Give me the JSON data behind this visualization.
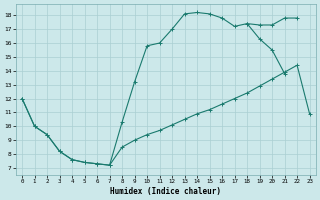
{
  "xlabel": "Humidex (Indice chaleur)",
  "bg_color": "#cce8ea",
  "grid_color": "#aacfd2",
  "line_color": "#1a7a6e",
  "xlim": [
    -0.5,
    23.5
  ],
  "ylim": [
    6.5,
    18.8
  ],
  "xticks": [
    0,
    1,
    2,
    3,
    4,
    5,
    6,
    7,
    8,
    9,
    10,
    11,
    12,
    13,
    14,
    15,
    16,
    17,
    18,
    19,
    20,
    21,
    22,
    23
  ],
  "yticks": [
    7,
    8,
    9,
    10,
    11,
    12,
    13,
    14,
    15,
    16,
    17,
    18
  ],
  "curve1_x": [
    0,
    1,
    2,
    3,
    4,
    5,
    6,
    7,
    8,
    9,
    10,
    11,
    12,
    13,
    14,
    15,
    16,
    17,
    18,
    19,
    20,
    21,
    22,
    23
  ],
  "curve1_y": [
    12,
    10,
    9.4,
    8.2,
    7.6,
    7.4,
    7.3,
    7.2,
    8.5,
    9.0,
    9.4,
    9.7,
    10.1,
    10.5,
    10.9,
    11.2,
    11.6,
    12.0,
    12.4,
    12.9,
    13.4,
    13.9,
    14.4,
    10.9
  ],
  "curve2_x": [
    0,
    1,
    2,
    3,
    4,
    5,
    6,
    7,
    8,
    9,
    10,
    11,
    12,
    13,
    14,
    15,
    16,
    17,
    18,
    19,
    20,
    21
  ],
  "curve2_y": [
    12,
    10,
    9.4,
    8.2,
    7.6,
    7.4,
    7.3,
    7.2,
    10.3,
    13.2,
    15.8,
    16.0,
    17.0,
    18.1,
    18.2,
    18.1,
    17.8,
    17.2,
    17.4,
    16.3,
    15.5,
    13.8
  ],
  "curve3_x": [
    18,
    19,
    20,
    21,
    22
  ],
  "curve3_y": [
    17.4,
    17.3,
    17.3,
    17.8,
    17.8
  ]
}
